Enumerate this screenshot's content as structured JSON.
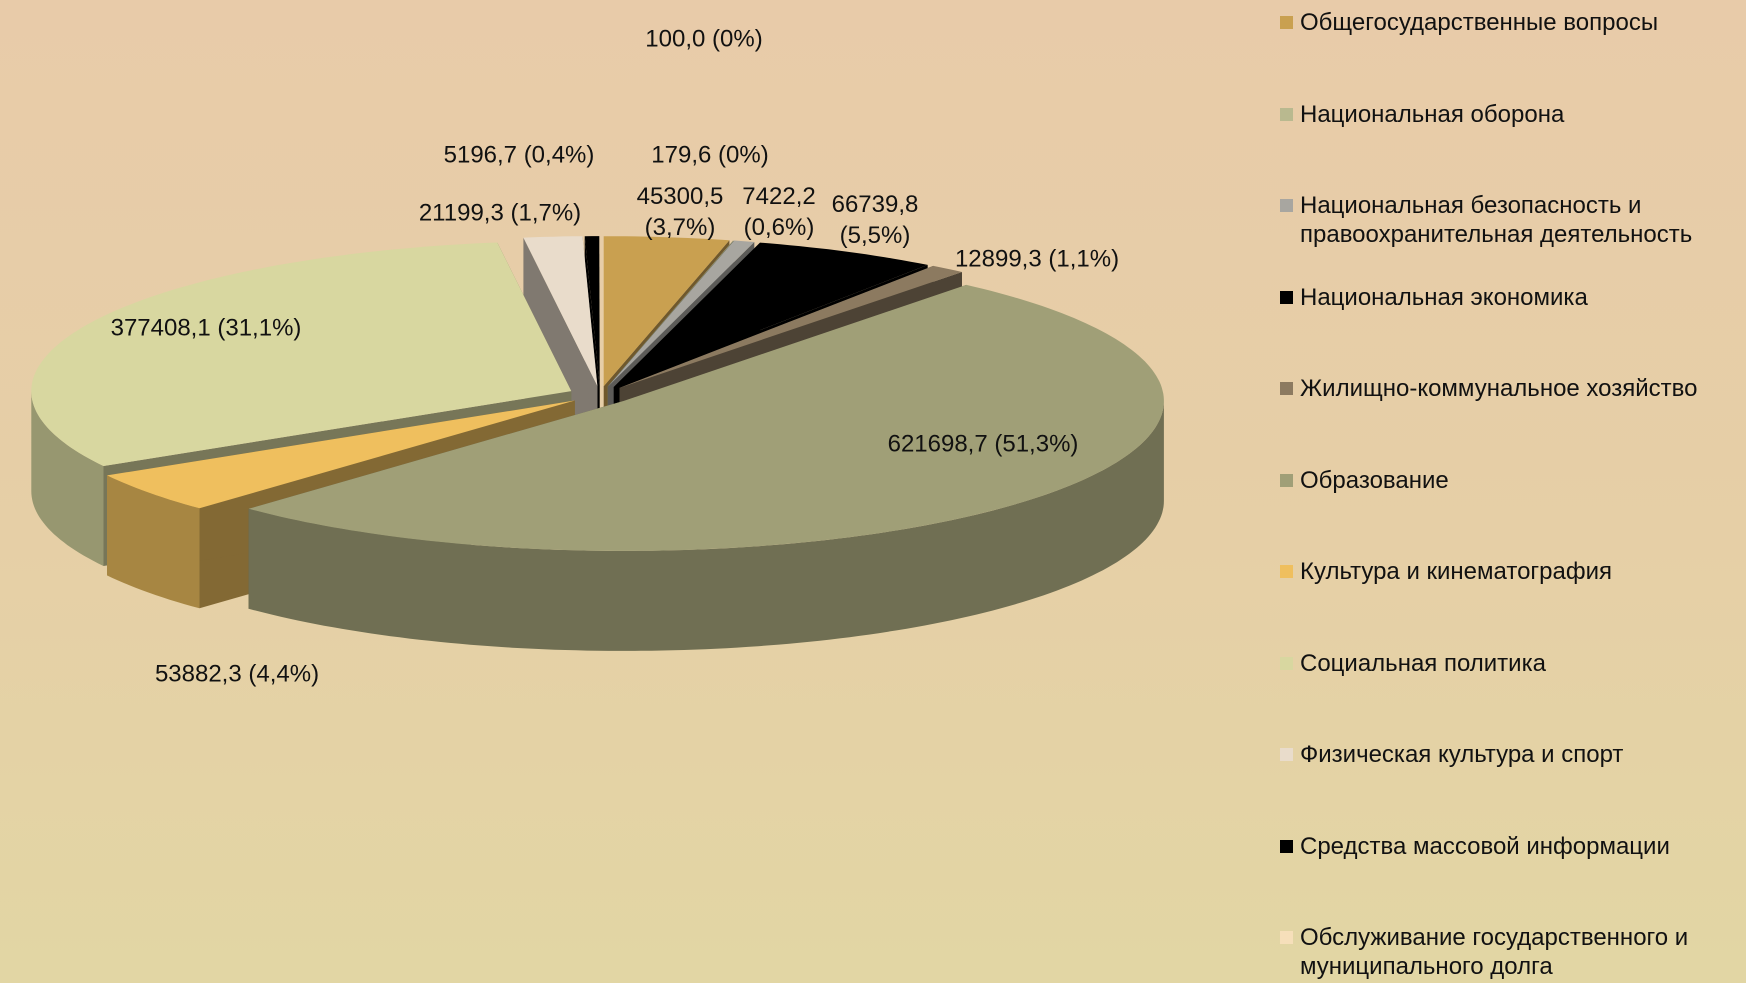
{
  "chart_data": {
    "type": "pie3d",
    "categories": [
      "Общегосударственные вопросы",
      "Национальная оборона",
      "Национальная безопасность и правоохранительная деятельность",
      "Национальная экономика",
      "Жилищно-коммунальное хозяйство",
      "Образование",
      "Культура и кинематография",
      "Социальная политика",
      "Физическая культура и спорт",
      "Средства массовой информации",
      "Обслуживание государственного и муниципального долга"
    ],
    "values": [
      45300.5,
      179.6,
      7422.2,
      66739.8,
      12899.3,
      621698.7,
      53882.3,
      377408.1,
      21199.3,
      5196.7,
      100.0
    ],
    "value_labels": [
      "45300,5 (3,7%)",
      "179,6  (0%)",
      "7422,2 (0,6%)",
      "66739,8 (5,5%)",
      "12899,3 (1,1%)",
      "621698,7 (51,3%)",
      "53882,3  (4,4%)",
      "377408,1 (31,1%)",
      "21199,3 (1,7%)",
      "5196,7 (0,4%)",
      "100,0 (0%)"
    ],
    "colors": [
      "#c9a050",
      "#b9b98f",
      "#a8a6a0",
      "#000000",
      "#8c7a60",
      "#a09f77",
      "#efbf5e",
      "#d8d7a0",
      "#e9dccb",
      "#000000",
      "#f6dfba"
    ],
    "legend": "right"
  }
}
